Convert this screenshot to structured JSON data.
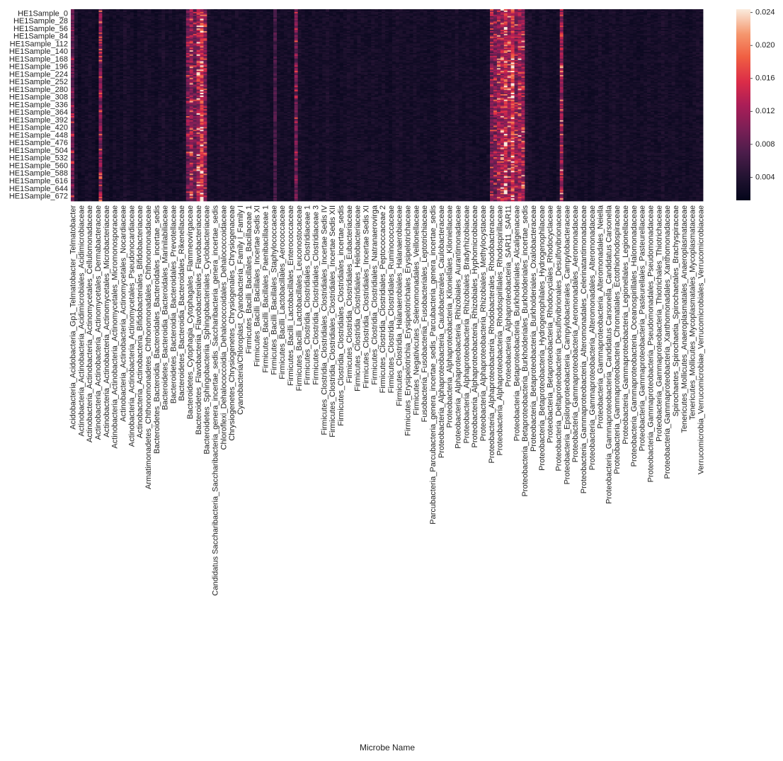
{
  "chart_data": {
    "type": "heatmap",
    "xlabel": "Microbe Name",
    "ylabel": "",
    "colormap": "rocket",
    "colorbar": {
      "range": [
        0.0012,
        0.0244
      ],
      "ticks": [
        "0.004",
        "0.008",
        "0.012",
        "0.016",
        "0.020",
        "0.024"
      ],
      "tick_values": [
        0.004,
        0.008,
        0.012,
        0.016,
        0.02,
        0.024
      ]
    },
    "y_labels": [
      "HE1Sample_0",
      "HE1Sample_28",
      "HE1Sample_56",
      "HE1Sample_84",
      "HE1Sample_112",
      "HE1Sample_140",
      "HE1Sample_168",
      "HE1Sample_196",
      "HE1Sample_224",
      "HE1Sample_252",
      "HE1Sample_280",
      "HE1Sample_308",
      "HE1Sample_336",
      "HE1Sample_364",
      "HE1Sample_392",
      "HE1Sample_420",
      "HE1Sample_448",
      "HE1Sample_476",
      "HE1Sample_504",
      "HE1Sample_532",
      "HE1Sample_560",
      "HE1Sample_588",
      "HE1Sample_616",
      "HE1Sample_644",
      "HE1Sample_672"
    ],
    "x_labels": [
      "Acidobacteria_Acidobacteria_Gp1_Telmatobacter_Telmatobacter",
      "Actinobacteria_Actinobacteria_Acidimicrobiales_Acidimicrobiaceae",
      "Actinobacteria_Actinobacteria_Actinomycetales_Cellulomonadaceae",
      "Actinobacteria_Actinobacteria_Actinomycetales_Dermabacteraceae",
      "Actinobacteria_Actinobacteria_Actinomycetales_Microbacteriaceae",
      "Actinobacteria_Actinobacteria_Actinomycetales_Micromonosporaceae",
      "Actinobacteria_Actinobacteria_Actinomycetales_Nocardiaceae",
      "Actinobacteria_Actinobacteria_Actinomycetales_Pseudonocardiaceae",
      "Actinobacteria_Actinobacteria_Bifidobacteriales_Bifidobacteriaceae",
      "Armatimonadetes_Chthonomonadetes_Chthonomonadales_Chthonomonadaceae",
      "Bacteroidetes_Bacteroidia_Bacteroidales_Bacteroidales_incertae_sedis",
      "Bacteroidetes_Bacteroidia_Bacteroidales_Marinilabiliaceae",
      "Bacteroidetes_Bacteroidia_Bacteroidales_Prevotellaceae",
      "Bacteroidetes_Bacteroidia_Bacteroidales_Rikenellaceae",
      "Bacteroidetes_Cytophagia_Cytophagales_Flammeovirgaceae",
      "Bacteroidetes_Flavobacteriia_Flavobacteriales_Flavobacteriaceae",
      "Bacteroidetes_Sphingobacteriia_Sphingobacteriales_Cyclobacteriaceae",
      "Candidatus Saccharibacteria_Saccharibacteria_genera_incertae_sedis_Saccharibacteria_genera_incertae_sedis",
      "Chloroflexi_Dehalococcoidia_Dehalococcoidales_Dehalococcoidaceae",
      "Chrysiogenetes_Chrysiogenetes_Chrysiogenales_Chrysiogenaceae",
      "Cyanobacteria/Chloroplast_Cyanobacteria_Family I_Family I",
      "Firmicutes_Bacilli_Bacillales_Bacillaceae 1",
      "Firmicutes_Bacilli_Bacillales_Incertae Sedis XI",
      "Firmicutes_Bacilli_Bacillales_Paenibacillaceae 1",
      "Firmicutes_Bacilli_Bacillales_Staphylococcaceae",
      "Firmicutes_Bacilli_Lactobacillales_Aerococcaceae",
      "Firmicutes_Bacilli_Lactobacillales_Enterococcaceae",
      "Firmicutes_Bacilli_Lactobacillales_Leuconostocaceae",
      "Firmicutes_Clostridia_Clostridiales_Clostridiaceae 1",
      "Firmicutes_Clostridia_Clostridiales_Clostridiaceae 3",
      "Firmicutes_Clostridia_Clostridiales_Clostridiales_Incertae Sedis IV",
      "Firmicutes_Clostridia_Clostridiales_Clostridiales_Incertae Sedis XII",
      "Firmicutes_Clostridia_Clostridiales_Clostridiales_incertae_sedis",
      "Firmicutes_Clostridia_Clostridiales_Eubacteriaceae",
      "Firmicutes_Clostridia_Clostridiales_Heliobacteriaceae",
      "Firmicutes_Clostridia_Clostridiales_Incertae Sedis XI",
      "Firmicutes_Clostridia_Clostridiales_Natranaerovirga",
      "Firmicutes_Clostridia_Clostridiales_Peptococcaceae 2",
      "Firmicutes_Clostridia_Clostridiales_Ruminococcaceae",
      "Firmicutes_Clostridia_Halanaerobiales_Halanaerobiaceae",
      "Firmicutes_Erysipelotrichia_Erysipelotrichales_Erysipelotrichaceae",
      "Firmicutes_Negativicutes_Selenomonadales_Veillonellaceae",
      "Fusobacteria_Fusobacteriia_Fusobacteriales_Leptotrichiaceae",
      "Parcubacteria_Parcubacteria_genera_incertae_sedis_Parcubacteria_genera_incertae_sedis",
      "Proteobacteria_Alphaproteobacteria_Caulobacterales_Caulobacteraceae",
      "Proteobacteria_Alphaproteobacteria_Kiloniellales_Kiloniellaceae",
      "Proteobacteria_Alphaproteobacteria_Rhizobiales_Aurantimonadaceae",
      "Proteobacteria_Alphaproteobacteria_Rhizobiales_Bradyrhizobiaceae",
      "Proteobacteria_Alphaproteobacteria_Rhizobiales_Hyphomicrobiaceae",
      "Proteobacteria_Alphaproteobacteria_Rhizobiales_Methylocystaceae",
      "Proteobacteria_Alphaproteobacteria_Rhodobacterales_Rhodobacteraceae",
      "Proteobacteria_Alphaproteobacteria_Rhodospirillales_Rhodospirillaceae",
      "Proteobacteria_Alphaproteobacteria_SAR11_SAR11",
      "Proteobacteria_Betaproteobacteria_Burkholderiales_Alcaligenaceae",
      "Proteobacteria_Betaproteobacteria_Burkholderiales_Burkholderiales_incertae_sedis",
      "Proteobacteria_Betaproteobacteria_Burkholderiales_Oxalobacteraceae",
      "Proteobacteria_Betaproteobacteria_Hydrogenophilales_Hydrogenophilaceae",
      "Proteobacteria_Betaproteobacteria_Rhodocyclales_Rhodocyclaceae",
      "Proteobacteria_Deltaproteobacteria_Desulfovibrionales_Desulfovibrionaceae",
      "Proteobacteria_Epsilonproteobacteria_Campylobacterales_Campylobacteraceae",
      "Proteobacteria_Gammaproteobacteria_Aeromonadales_Aeromonadaceae",
      "Proteobacteria_Gammaproteobacteria_Alteromonadales_Celerinatantimonadaceae",
      "Proteobacteria_Gammaproteobacteria_Alteromonadales_Alteromonadaceae",
      "Proteobacteria_Gammaproteobacteria_Alteromonadales_Neiella",
      "Proteobacteria_Gammaproteobacteria_Candidatus Carsonella_Candidatus Carsonella",
      "Proteobacteria_Gammaproteobacteria_Chromatiales_Ectothiorhodospiraceae",
      "Proteobacteria_Gammaproteobacteria_Legionellales_Legionellaceae",
      "Proteobacteria_Gammaproteobacteria_Oceanospirillales_Halomonadaceae",
      "Proteobacteria_Gammaproteobacteria_Pasteurellales_Pasteurellaceae",
      "Proteobacteria_Gammaproteobacteria_Pseudomonadales_Pseudomonadaceae",
      "Proteobacteria_Gammaproteobacteria_Thiotrichales_Thiotrichaceae",
      "Proteobacteria_Gammaproteobacteria_Xanthomonadales_Xanthomonadaceae",
      "Spirochaetes_Spirochaetia_Spirochaetales_Brachyspiraceae",
      "Tenericutes_Mollicutes_Anaeroplasmatales_Anaeroplasmataceae",
      "Tenericutes_Mollicutes_Mycoplasmatales_Mycoplasmataceae",
      "Verrucomicrobia_Verrucomicrobiae_Verrucomicrobiales_Verrucomicrobiaceae"
    ],
    "column_count": 181,
    "row_count": 700,
    "column_mean_values": [
      0.0085,
      0.0035,
      0.0024,
      0.0028,
      0.003,
      0.0032,
      0.0028,
      0.0024,
      0.01,
      0.003,
      0.0028,
      0.0024,
      0.003,
      0.0028,
      0.0026,
      0.0034,
      0.003,
      0.0028,
      0.0024,
      0.003,
      0.0028,
      0.0032,
      0.003,
      0.0028,
      0.0026,
      0.003,
      0.0034,
      0.0028,
      0.003,
      0.0026,
      0.003,
      0.0028,
      0.0032,
      0.009,
      0.011,
      0.0085,
      0.012,
      0.016,
      0.01,
      0.0034,
      0.003,
      0.0028,
      0.0032,
      0.003,
      0.0028,
      0.003,
      0.0028,
      0.0032,
      0.003,
      0.0028,
      0.003,
      0.0026,
      0.0028,
      0.003,
      0.0032,
      0.003,
      0.0028,
      0.0026,
      0.0065,
      0.003,
      0.0028,
      0.003,
      0.0032,
      0.0028,
      0.009,
      0.0034,
      0.003,
      0.0028,
      0.0026,
      0.003,
      0.0032,
      0.0028,
      0.003,
      0.0034,
      0.003,
      0.0028,
      0.0026,
      0.0028,
      0.003,
      0.0032,
      0.003,
      0.0028,
      0.0032,
      0.003,
      0.003,
      0.0028,
      0.0032,
      0.003,
      0.0028,
      0.003,
      0.0028,
      0.0026,
      0.003,
      0.0034,
      0.0032,
      0.0028,
      0.003,
      0.0028,
      0.0032,
      0.003,
      0.0028,
      0.003,
      0.0028,
      0.0026,
      0.0028,
      0.003,
      0.0032,
      0.003,
      0.0028,
      0.003,
      0.0034,
      0.003,
      0.0028,
      0.0032,
      0.003,
      0.0028,
      0.003,
      0.0026,
      0.0028,
      0.003,
      0.009,
      0.009,
      0.011,
      0.012,
      0.014,
      0.011,
      0.016,
      0.01,
      0.012,
      0.011,
      0.004,
      0.0034,
      0.003,
      0.0028,
      0.003,
      0.0032,
      0.003,
      0.0028,
      0.0026,
      0.003,
      0.011,
      0.0034,
      0.003,
      0.0028,
      0.0032,
      0.003,
      0.0028,
      0.003,
      0.0026,
      0.0028,
      0.003,
      0.0032,
      0.003,
      0.0028,
      0.003,
      0.0034,
      0.003,
      0.0028,
      0.0032,
      0.003,
      0.0028,
      0.003,
      0.0026,
      0.0028,
      0.003,
      0.0032,
      0.003,
      0.0028,
      0.003,
      0.0034,
      0.003,
      0.0028,
      0.0032,
      0.003,
      0.0028,
      0.003,
      0.0026,
      0.0028,
      0.003,
      0.0032,
      0.003
    ]
  }
}
